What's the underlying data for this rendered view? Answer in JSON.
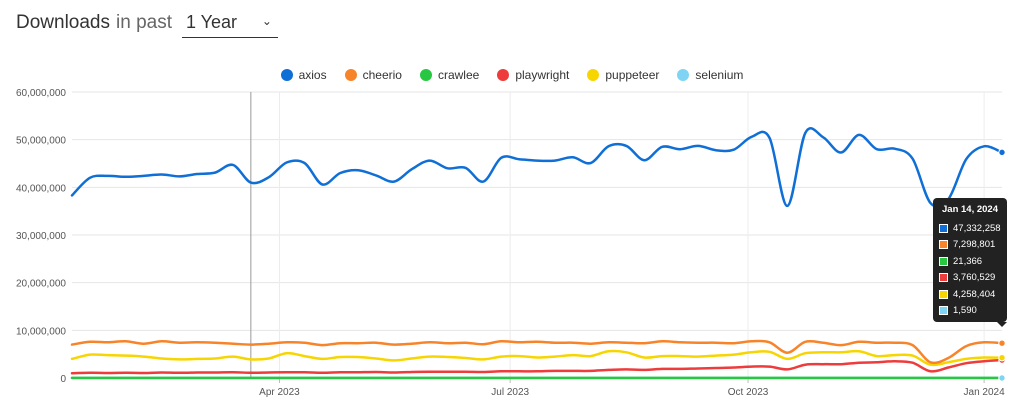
{
  "header": {
    "title": "Downloads",
    "subtitle": "in past",
    "period_selected": "1 Year"
  },
  "legend": [
    {
      "name": "axios",
      "color": "#0f6fd6"
    },
    {
      "name": "cheerio",
      "color": "#f8842a"
    },
    {
      "name": "crawlee",
      "color": "#28c741"
    },
    {
      "name": "playwright",
      "color": "#ee3b3b"
    },
    {
      "name": "puppeteer",
      "color": "#f7d500"
    },
    {
      "name": "selenium",
      "color": "#7fd4f4"
    }
  ],
  "chart_data": {
    "type": "line",
    "grid": true,
    "legend_position": "top-center",
    "ylim": [
      0,
      60000000
    ],
    "y_ticks": [
      "0",
      "10,000,000",
      "20,000,000",
      "30,000,000",
      "40,000,000",
      "50,000,000",
      "60,000,000"
    ],
    "x_ticks": [
      {
        "label": "Apr 2023",
        "week": 11.6
      },
      {
        "label": "Jul 2023",
        "week": 24.5
      },
      {
        "label": "Oct 2023",
        "week": 37.8
      },
      {
        "label": "Jan 2024",
        "week": 51.0
      }
    ],
    "x_start": "2023-01-15",
    "x_end": "2024-01-14",
    "series": [
      {
        "name": "axios",
        "color": "#0f6fd6",
        "values": [
          38300000,
          42000000,
          42400000,
          42200000,
          42400000,
          42700000,
          42300000,
          42800000,
          43100000,
          44700000,
          41000000,
          42100000,
          45200000,
          45100000,
          40600000,
          43000000,
          43600000,
          42500000,
          41200000,
          43800000,
          45600000,
          44000000,
          44100000,
          41200000,
          46200000,
          45900000,
          45600000,
          45600000,
          46300000,
          45100000,
          48600000,
          48700000,
          45700000,
          48500000,
          48000000,
          48700000,
          47800000,
          47900000,
          50600000,
          50400000,
          36100000,
          51400000,
          50500000,
          47300000,
          51000000,
          48000000,
          48100000,
          46000000,
          36700000,
          37500000,
          45900000,
          48600000,
          47332258
        ]
      },
      {
        "name": "cheerio",
        "color": "#f8842a",
        "values": [
          7000000,
          7600000,
          7500000,
          7700000,
          7200000,
          7700000,
          7400000,
          7500000,
          7400000,
          7200000,
          7000000,
          7200000,
          7500000,
          7400000,
          6900000,
          7300000,
          7300000,
          7400000,
          7000000,
          7200000,
          7500000,
          7300000,
          7400000,
          7100000,
          7700000,
          7500000,
          7600000,
          7400000,
          7400000,
          7200000,
          7500000,
          7400000,
          7300000,
          7700000,
          7500000,
          7400000,
          7400000,
          7300000,
          7700000,
          7500000,
          5300000,
          7600000,
          7400000,
          6900000,
          7600000,
          7400000,
          7400000,
          6900000,
          3300000,
          4200000,
          6700000,
          7500000,
          7298801
        ]
      },
      {
        "name": "crawlee",
        "color": "#28c741",
        "values": [
          20000,
          20000,
          20000,
          20000,
          20000,
          20000,
          20000,
          20000,
          20000,
          20000,
          20000,
          20000,
          20000,
          20000,
          20000,
          20000,
          20000,
          20000,
          20000,
          20000,
          20000,
          20000,
          20000,
          20000,
          20000,
          20000,
          20000,
          20000,
          20000,
          20000,
          20000,
          20000,
          20000,
          20000,
          20000,
          20000,
          20000,
          20000,
          20000,
          20000,
          20000,
          20000,
          20000,
          20000,
          20000,
          20000,
          20000,
          20000,
          20000,
          20000,
          20000,
          20000,
          21366
        ]
      },
      {
        "name": "playwright",
        "color": "#ee3b3b",
        "values": [
          1000000,
          1100000,
          1050000,
          1100000,
          1050000,
          1150000,
          1100000,
          1150000,
          1150000,
          1200000,
          1100000,
          1150000,
          1200000,
          1200000,
          1100000,
          1200000,
          1200000,
          1250000,
          1150000,
          1250000,
          1300000,
          1300000,
          1300000,
          1250000,
          1400000,
          1400000,
          1400000,
          1500000,
          1500000,
          1500000,
          1700000,
          1800000,
          1700000,
          1900000,
          1900000,
          2000000,
          2100000,
          2200000,
          2400000,
          2400000,
          1800000,
          2800000,
          2900000,
          2900000,
          3200000,
          3300000,
          3500000,
          3200000,
          1400000,
          2200000,
          3100000,
          3500000,
          3760529
        ]
      },
      {
        "name": "puppeteer",
        "color": "#f7d500",
        "values": [
          4000000,
          4900000,
          4800000,
          4700000,
          4500000,
          4100000,
          3900000,
          4000000,
          4100000,
          4500000,
          3900000,
          4100000,
          5200000,
          4600000,
          4000000,
          4400000,
          4400000,
          4100000,
          3700000,
          4100000,
          4500000,
          4400000,
          4200000,
          3900000,
          4500000,
          4600000,
          4300000,
          4500000,
          4800000,
          4600000,
          5600000,
          5400000,
          4300000,
          4600000,
          4600000,
          4500000,
          4700000,
          4900000,
          5400000,
          5500000,
          4000000,
          5200000,
          5400000,
          5400000,
          5600000,
          4600000,
          4800000,
          4700000,
          2800000,
          3300000,
          4000000,
          4300000,
          4258404
        ]
      },
      {
        "name": "selenium",
        "color": "#7fd4f4",
        "values": [
          1500,
          1500,
          1500,
          1500,
          1500,
          1500,
          1500,
          1500,
          1500,
          1500,
          1500,
          1500,
          1500,
          1500,
          1500,
          1500,
          1500,
          1500,
          1500,
          1500,
          1500,
          1500,
          1500,
          1500,
          1500,
          1500,
          1500,
          1500,
          1500,
          1500,
          1500,
          1500,
          1500,
          1500,
          1500,
          1500,
          1500,
          1500,
          1500,
          1500,
          1500,
          1500,
          1500,
          1500,
          1500,
          1500,
          1500,
          1500,
          1500,
          1500,
          1500,
          1500,
          1590
        ]
      }
    ]
  },
  "tooltip": {
    "date": "Jan 14, 2024",
    "rows": [
      {
        "color": "#0f6fd6",
        "value": "47,332,258"
      },
      {
        "color": "#f8842a",
        "value": "7,298,801"
      },
      {
        "color": "#28c741",
        "value": "21,366"
      },
      {
        "color": "#ee3b3b",
        "value": "3,760,529"
      },
      {
        "color": "#f7d500",
        "value": "4,258,404"
      },
      {
        "color": "#7fd4f4",
        "value": "1,590"
      }
    ]
  }
}
